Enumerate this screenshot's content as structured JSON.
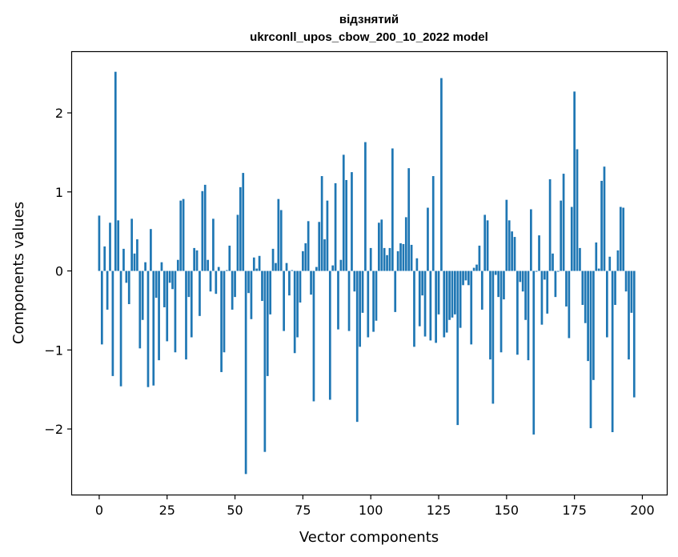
{
  "chart_data": {
    "type": "bar",
    "title_line1": "відзнятий",
    "title_line2": "ukrconll_upos_cbow_200_10_2022 model",
    "xlabel": "Vector components",
    "ylabel": "Components values",
    "xlim": [
      -10,
      209
    ],
    "ylim": [
      -2.83,
      2.77
    ],
    "xticks": [
      0,
      25,
      50,
      75,
      100,
      125,
      150,
      175,
      200
    ],
    "yticks": [
      -2,
      -1,
      0,
      1,
      2
    ],
    "ytick_labels": [
      "−2",
      "−1",
      "0",
      "1",
      "2"
    ],
    "bar_color": "#1f77b4",
    "x_start": 0,
    "values": [
      0.7,
      -0.93,
      0.31,
      -0.49,
      0.61,
      -1.33,
      2.52,
      0.64,
      -1.46,
      0.28,
      -0.15,
      -0.42,
      0.66,
      0.22,
      0.4,
      -0.98,
      -0.62,
      0.11,
      -1.47,
      0.53,
      -1.45,
      -0.34,
      -1.13,
      0.11,
      -0.46,
      -0.89,
      -0.15,
      -0.23,
      -1.03,
      0.14,
      0.89,
      0.91,
      -1.12,
      -0.33,
      -0.84,
      0.29,
      0.26,
      -0.57,
      1.01,
      1.09,
      0.14,
      -0.26,
      0.66,
      -0.29,
      0.05,
      -1.28,
      -1.03,
      0.01,
      0.32,
      -0.49,
      -0.33,
      0.71,
      1.06,
      1.24,
      -2.57,
      -0.28,
      -0.61,
      0.17,
      0.03,
      0.19,
      -0.38,
      -2.29,
      -1.33,
      -0.55,
      0.28,
      0.1,
      0.91,
      0.77,
      -0.76,
      0.1,
      -0.31,
      0.01,
      -1.04,
      -0.84,
      -0.4,
      0.25,
      0.35,
      0.63,
      -0.3,
      -1.65,
      0.05,
      0.62,
      1.2,
      0.4,
      0.89,
      -1.63,
      0.07,
      1.11,
      -0.74,
      0.14,
      1.47,
      1.15,
      -0.76,
      1.25,
      -0.26,
      -1.91,
      -0.96,
      -0.53,
      1.63,
      -0.84,
      0.29,
      -0.77,
      -0.63,
      0.61,
      0.65,
      0.29,
      0.2,
      0.29,
      1.55,
      -0.52,
      0.25,
      0.35,
      0.34,
      0.68,
      1.3,
      0.33,
      -0.96,
      0.16,
      -0.7,
      -0.31,
      -0.83,
      0.8,
      -0.88,
      1.2,
      -0.91,
      -0.55,
      2.44,
      -0.84,
      -0.78,
      -0.62,
      -0.59,
      -0.55,
      -1.95,
      -0.72,
      -0.18,
      -0.12,
      -0.18,
      -0.93,
      0.04,
      0.08,
      0.32,
      -0.49,
      0.71,
      0.64,
      -1.12,
      -1.68,
      -0.05,
      -0.33,
      -1.03,
      -0.36,
      0.9,
      0.64,
      0.5,
      0.43,
      -1.06,
      -0.14,
      -0.26,
      -0.62,
      -1.13,
      0.78,
      -2.07,
      -0.01,
      0.45,
      -0.68,
      -0.11,
      -0.54,
      1.16,
      0.22,
      -0.33,
      -0.01,
      0.89,
      1.23,
      -0.45,
      -0.85,
      0.81,
      2.27,
      1.54,
      0.29,
      -0.43,
      -0.66,
      -1.14,
      -1.99,
      -1.38,
      0.36,
      0.03,
      1.14,
      1.32,
      -0.84,
      0.18,
      -2.04,
      -0.43,
      0.26,
      0.81,
      0.8,
      -0.26,
      -1.12,
      -0.53,
      -1.6
    ]
  }
}
